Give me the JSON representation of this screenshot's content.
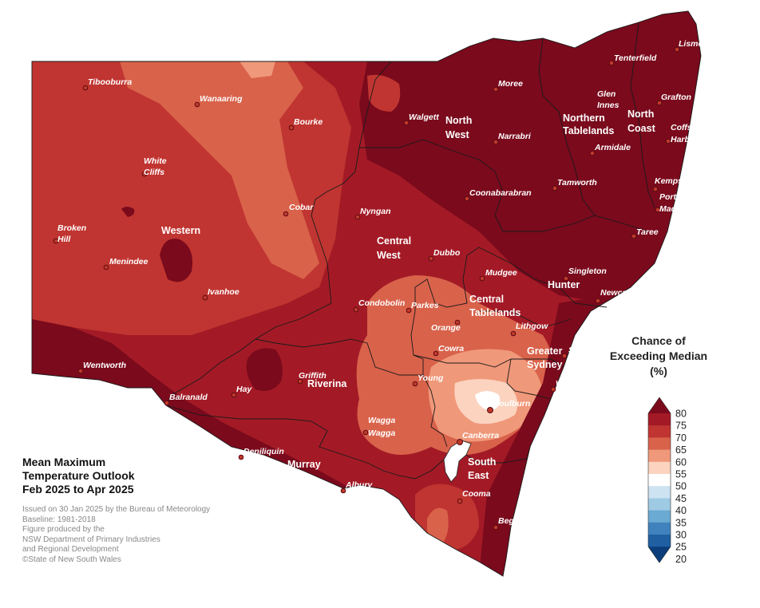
{
  "title": {
    "line1": "Mean Maximum",
    "line2": "Temperature Outlook",
    "line3": "Feb 2025 to Apr 2025"
  },
  "credits": {
    "issued": "Issued on 30 Jan 2025 by the Bureau of Meteorology",
    "baseline": "Baseline: 1981-2018",
    "produced": "Figure produced by the",
    "dept1": "NSW Department of Primary Industries",
    "dept2": "and Regional Development",
    "copyright": "©State of New South Wales"
  },
  "legend": {
    "title1": "Chance of",
    "title2": "Exceeding Median",
    "title3": "(%)",
    "ticks": [
      "80",
      "75",
      "70",
      "65",
      "60",
      "55",
      "50",
      "45",
      "40",
      "35",
      "30",
      "25",
      "20"
    ],
    "colors": [
      "#7a0a1c",
      "#a31a26",
      "#c03531",
      "#d9624b",
      "#f0987a",
      "#fbd3bf",
      "#ffffff",
      "#cde3f2",
      "#9fcae4",
      "#6aaad3",
      "#3f82bd",
      "#1f5fa2",
      "#0b3d7a"
    ]
  },
  "regions": {
    "western": "Western",
    "north_west_1": "North",
    "north_west_2": "West",
    "northern_tablelands_1": "Northern",
    "northern_tablelands_2": "Tablelands",
    "north_coast_1": "North",
    "north_coast_2": "Coast",
    "central_west_1": "Central",
    "central_west_2": "West",
    "central_tablelands_1": "Central",
    "central_tablelands_2": "Tablelands",
    "hunter": "Hunter",
    "greater_sydney_1": "Greater",
    "greater_sydney_2": "Sydney",
    "riverina": "Riverina",
    "murray": "Murray",
    "south_east_1": "South",
    "south_east_2": "East"
  },
  "towns": {
    "tibooburra": "Tibooburra",
    "wanaaring": "Wanaaring",
    "bourke": "Bourke",
    "white": "White",
    "cliffs": "Cliffs",
    "cobar": "Cobar",
    "broken": "Broken",
    "hill": "Hill",
    "menindee": "Menindee",
    "ivanhoe": "Ivanhoe",
    "wentworth": "Wentworth",
    "balranald": "Balranald",
    "hay": "Hay",
    "griffith": "Griffith",
    "deniliquin": "Deniliquin",
    "albury": "Albury",
    "wagga1": "Wagga",
    "wagga2": "Wagga",
    "young": "Young",
    "cowra": "Cowra",
    "orange": "Orange",
    "parkes": "Parkes",
    "condobolin": "Condobolin",
    "dubbo": "Dubbo",
    "nyngan": "Nyngan",
    "walgett": "Walgett",
    "moree": "Moree",
    "narrabri": "Narrabri",
    "coonabarabran": "Coonabarabran",
    "tamworth": "Tamworth",
    "armidale": "Armidale",
    "glen": "Glen",
    "innes": "Innes",
    "tenterfield": "Tenterfield",
    "lismore": "Lismore",
    "grafton": "Grafton",
    "coffs": "Coffs",
    "harbour": "Harbour",
    "kempsey": "Kempsey",
    "port": "Port",
    "macquarie": "Macquarie",
    "taree": "Taree",
    "singleton": "Singleton",
    "newcastle": "Newcastle",
    "mudgee": "Mudgee",
    "lithgow": "Lithgow",
    "sydney": "Sydney",
    "wollongong": "Wollongong",
    "goulburn": "Goulburn",
    "canberra": "Canberra",
    "cooma": "Cooma",
    "bega": "Bega"
  }
}
